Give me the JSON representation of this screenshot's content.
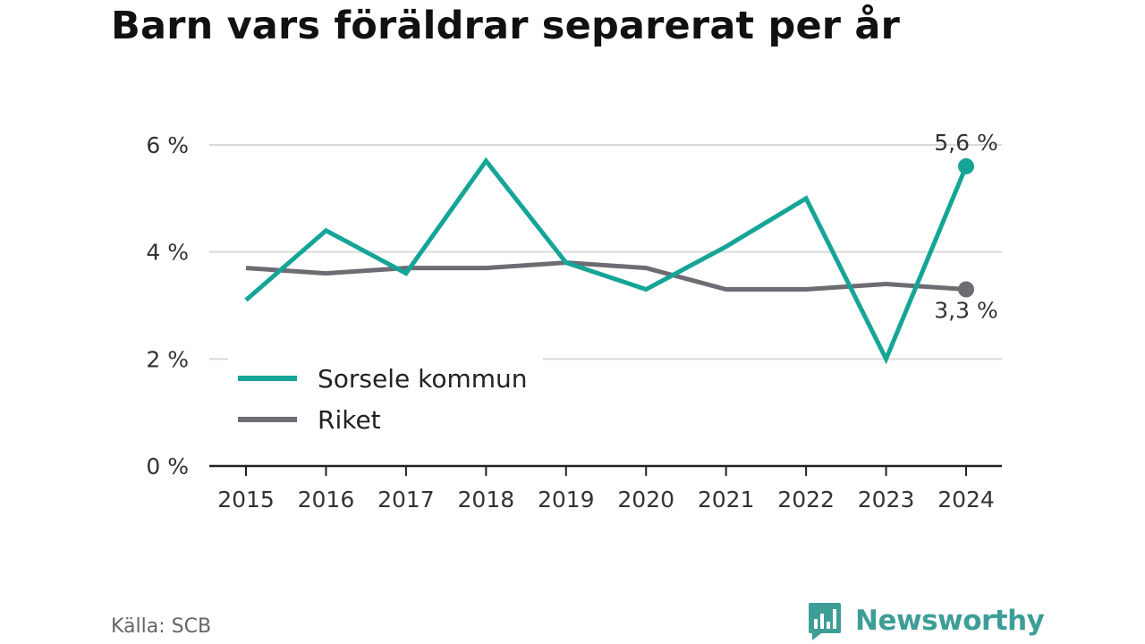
{
  "title": "Barn vars föräldrar separerat per år",
  "source": "Källa: SCB",
  "brand": {
    "name": "Newsworthy",
    "color": "#3e9e97",
    "icon": "bar-chart-speech-bubble-icon"
  },
  "chart_data": {
    "type": "line",
    "x": [
      "2015",
      "2016",
      "2017",
      "2018",
      "2019",
      "2020",
      "2021",
      "2022",
      "2023",
      "2024"
    ],
    "ylim": [
      0,
      6
    ],
    "yticks": [
      0,
      2,
      4,
      6
    ],
    "ytick_labels": [
      "0 %",
      "2 %",
      "4 %",
      "6 %"
    ],
    "grid": true,
    "legend": "bottom-left",
    "series": [
      {
        "name": "Sorsele kommun",
        "color": "#15a597",
        "values": [
          3.1,
          4.4,
          3.6,
          5.7,
          3.8,
          3.3,
          4.1,
          5.0,
          2.0,
          5.6
        ],
        "end_label": "5,6 %"
      },
      {
        "name": "Riket",
        "color": "#6e6b73",
        "values": [
          3.7,
          3.6,
          3.7,
          3.7,
          3.8,
          3.7,
          3.3,
          3.3,
          3.4,
          3.3
        ],
        "end_label": "3,3 %"
      }
    ]
  }
}
